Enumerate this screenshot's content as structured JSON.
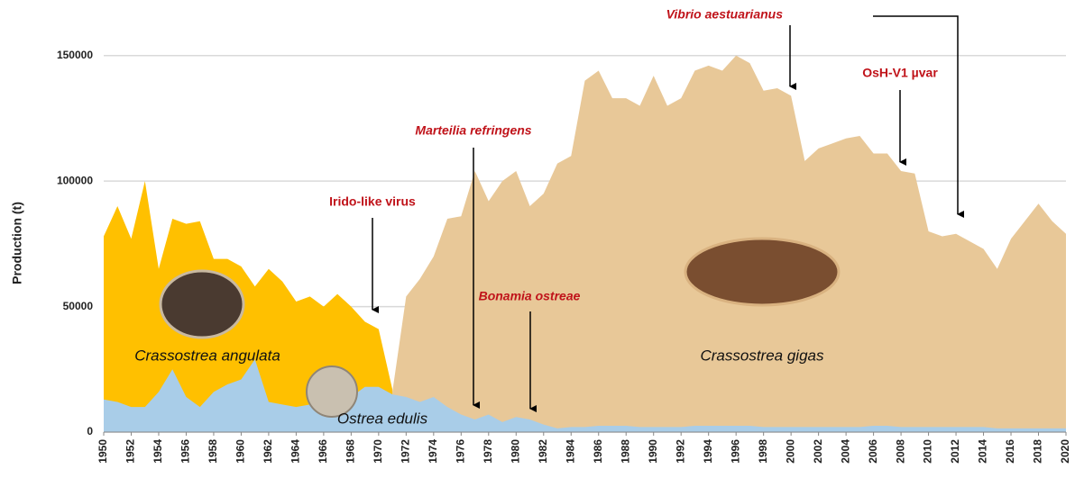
{
  "chart_data": {
    "type": "area",
    "y_label": "Production (t)",
    "x": [
      1950,
      1951,
      1952,
      1953,
      1954,
      1955,
      1956,
      1957,
      1958,
      1959,
      1960,
      1961,
      1962,
      1963,
      1964,
      1965,
      1966,
      1967,
      1968,
      1969,
      1970,
      1971,
      1972,
      1973,
      1974,
      1975,
      1976,
      1977,
      1978,
      1979,
      1980,
      1981,
      1982,
      1983,
      1984,
      1985,
      1986,
      1987,
      1988,
      1989,
      1990,
      1991,
      1992,
      1993,
      1994,
      1995,
      1996,
      1997,
      1998,
      1999,
      2000,
      2001,
      2002,
      2003,
      2004,
      2005,
      2006,
      2007,
      2008,
      2009,
      2010,
      2011,
      2012,
      2013,
      2014,
      2015,
      2016,
      2017,
      2018,
      2019,
      2020
    ],
    "series": [
      {
        "name": "Crassostrea gigas",
        "color": "#e8c898",
        "values": [
          null,
          null,
          null,
          null,
          null,
          null,
          null,
          null,
          null,
          null,
          null,
          null,
          null,
          null,
          null,
          null,
          null,
          null,
          null,
          null,
          null,
          16000,
          54000,
          61000,
          70000,
          85000,
          86000,
          104000,
          92000,
          100000,
          104000,
          90000,
          95000,
          107000,
          110000,
          140000,
          144000,
          133000,
          133000,
          130000,
          142000,
          130000,
          133000,
          144000,
          146000,
          144000,
          150000,
          147000,
          136000,
          137000,
          134000,
          108000,
          113000,
          115000,
          117000,
          118000,
          111000,
          111000,
          104000,
          103000,
          80000,
          78000,
          79000,
          76000,
          73000,
          65000,
          77000,
          84000,
          91000,
          84000,
          79000
        ]
      },
      {
        "name": "Crassostrea angulata",
        "color": "#ffc000",
        "values": [
          78000,
          90000,
          77000,
          100000,
          65000,
          85000,
          83000,
          84000,
          69000,
          69000,
          66000,
          58000,
          65000,
          60000,
          52000,
          54000,
          50000,
          55000,
          50000,
          44000,
          41000,
          17000,
          null,
          null,
          null,
          null,
          null,
          null,
          null,
          null,
          null,
          null,
          null,
          null,
          null,
          null,
          null,
          null,
          null,
          null,
          null,
          null,
          null,
          null,
          null,
          null,
          null,
          null,
          null,
          null,
          null,
          null,
          null,
          null,
          null,
          null,
          null,
          null,
          null,
          null,
          null,
          null,
          null,
          null,
          null,
          null,
          null,
          null,
          null,
          null,
          null
        ]
      },
      {
        "name": "Ostrea edulis",
        "color": "#a9cde8",
        "values": [
          13000,
          12000,
          10000,
          10000,
          16000,
          25000,
          14000,
          10000,
          16000,
          19000,
          21000,
          29000,
          12000,
          11000,
          10000,
          11000,
          12000,
          12000,
          14000,
          18000,
          18000,
          15000,
          14000,
          12000,
          14000,
          10000,
          7000,
          5000,
          7000,
          4000,
          6000,
          5000,
          3000,
          1500,
          2000,
          2000,
          2500,
          2500,
          2500,
          2000,
          2000,
          2000,
          2000,
          2500,
          2500,
          2500,
          2500,
          2500,
          2000,
          2000,
          2000,
          2000,
          2000,
          2000,
          2000,
          2000,
          2500,
          2500,
          2000,
          2000,
          2000,
          2000,
          2000,
          2000,
          2000,
          1500,
          1500,
          1500,
          1500,
          1500,
          1500
        ]
      }
    ],
    "xlim": [
      1950,
      2020
    ],
    "xticks": [
      1950,
      1952,
      1954,
      1956,
      1958,
      1960,
      1962,
      1964,
      1966,
      1968,
      1970,
      1972,
      1974,
      1976,
      1978,
      1980,
      1982,
      1984,
      1986,
      1988,
      1990,
      1992,
      1994,
      1996,
      1998,
      2000,
      2002,
      2004,
      2006,
      2008,
      2010,
      2012,
      2014,
      2016,
      2018,
      2020
    ],
    "ylim": [
      0,
      170000
    ],
    "yticks": [
      0,
      50000,
      100000,
      150000
    ],
    "grid": true,
    "annotations": [
      "Vibrio aestuarianus",
      "OsH-V1 µvar",
      "Marteilia refringens",
      "Irido-like virus",
      "Bonamia ostreae"
    ]
  }
}
